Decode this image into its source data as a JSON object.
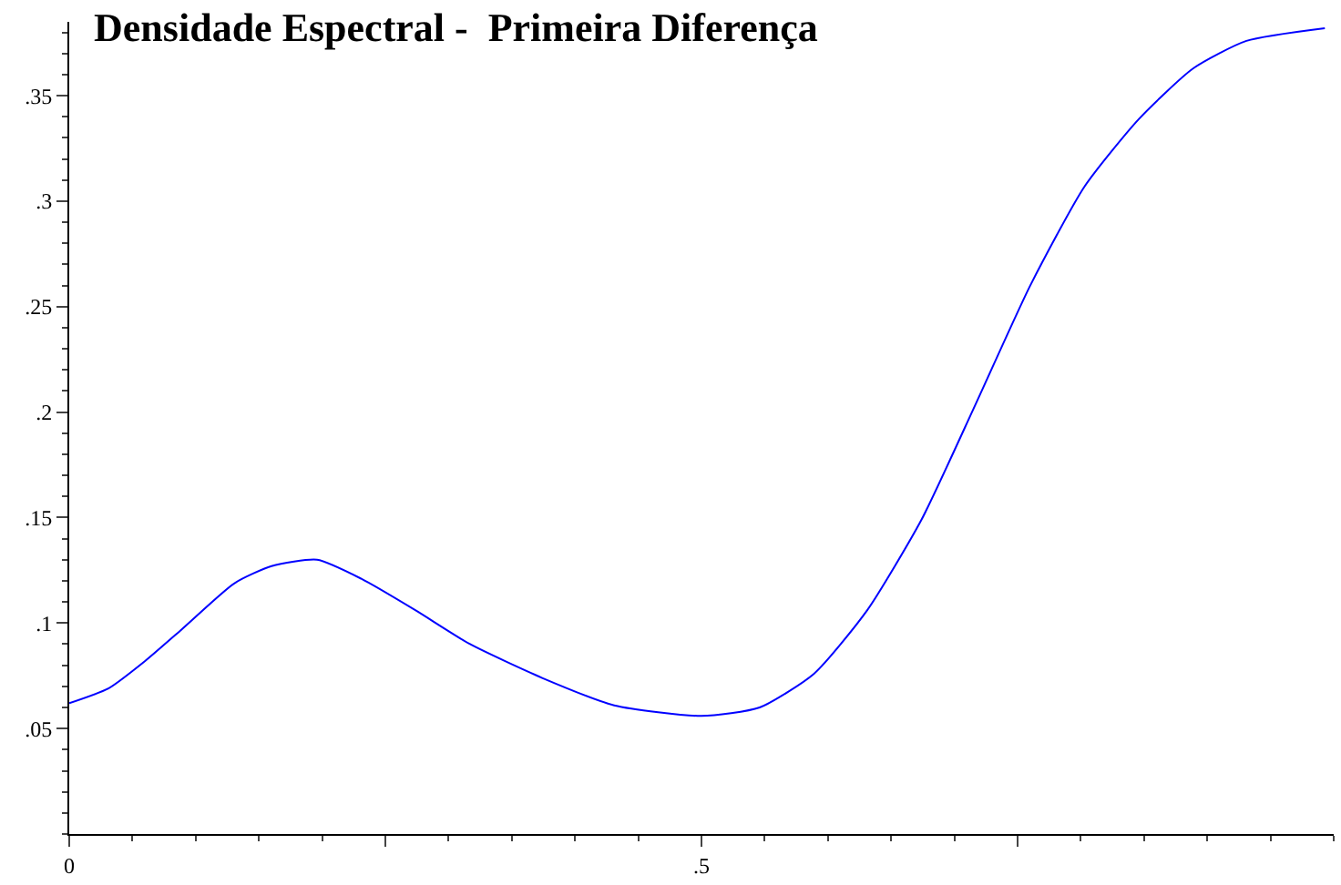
{
  "chart_data": {
    "type": "line",
    "title": "Densidade Espectral -  Primeira Diferença",
    "x": [
      0,
      0.031,
      0.06,
      0.089,
      0.131,
      0.16,
      0.196,
      0.231,
      0.274,
      0.317,
      0.374,
      0.431,
      0.5,
      0.546,
      0.589,
      0.631,
      0.674,
      0.717,
      0.76,
      0.803,
      0.846,
      0.889,
      0.931,
      0.993
    ],
    "series": [
      {
        "color": "#0000ff",
        "values": [
          0.062,
          0.069,
          0.082,
          0.097,
          0.119,
          0.127,
          0.13,
          0.121,
          0.106,
          0.09,
          0.074,
          0.061,
          0.056,
          0.06,
          0.076,
          0.106,
          0.149,
          0.204,
          0.26,
          0.307,
          0.339,
          0.363,
          0.376,
          0.382
        ]
      }
    ],
    "xlim": [
      0,
      1
    ],
    "ylim": [
      0,
      0.385
    ],
    "xticks": [
      0,
      {
        "value": 0.25,
        "label": null
      },
      {
        "value": 0.5,
        "label": ".5"
      },
      {
        "value": 0.75,
        "label": null
      }
    ],
    "yticks": [
      {
        "value": 0.05,
        "label": ".05"
      },
      {
        "value": 0.1,
        "label": ".1"
      },
      {
        "value": 0.15,
        "label": ".15"
      },
      {
        "value": 0.2,
        "label": ".2"
      },
      {
        "value": 0.25,
        "label": ".25"
      },
      {
        "value": 0.3,
        "label": ".3"
      },
      {
        "value": 0.35,
        "label": ".35"
      }
    ],
    "marker": "none",
    "line_style": "solid"
  }
}
